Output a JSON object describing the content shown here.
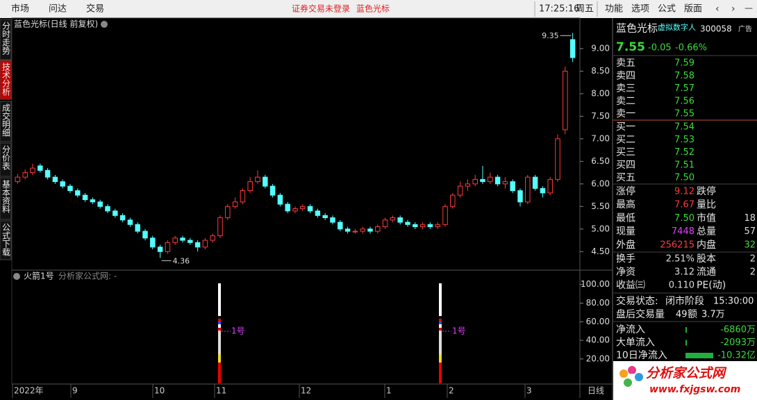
{
  "top_bar": {
    "menu": [
      "市场",
      "问达",
      "交易"
    ],
    "status": "证券交易未登录",
    "stock": "蓝色光标",
    "time": "17:25:16",
    "weekday": "周五",
    "tools": [
      "功能",
      "选项",
      "公式",
      "版面"
    ]
  },
  "side_tabs": [
    "分时走势",
    "技术分析",
    "成交明细",
    "分价表",
    "基本资料",
    "公式下载"
  ],
  "chart_data": [
    {
      "type": "candlestick",
      "title": "蓝色光标(日线 前复权)",
      "candles": [
        [
          6.05,
          6.15,
          6.22,
          6.0
        ],
        [
          6.15,
          6.25,
          6.32,
          6.1
        ],
        [
          6.25,
          6.35,
          6.45,
          6.2
        ],
        [
          6.4,
          6.3,
          6.45,
          6.25
        ],
        [
          6.3,
          6.15,
          6.35,
          6.1
        ],
        [
          6.15,
          6.05,
          6.2,
          6.0
        ],
        [
          6.05,
          5.95,
          6.1,
          5.9
        ],
        [
          5.95,
          5.85,
          6.0,
          5.8
        ],
        [
          5.85,
          5.75,
          5.9,
          5.7
        ],
        [
          5.75,
          5.65,
          5.8,
          5.6
        ],
        [
          5.65,
          5.6,
          5.7,
          5.55
        ],
        [
          5.6,
          5.5,
          5.65,
          5.45
        ],
        [
          5.5,
          5.4,
          5.55,
          5.35
        ],
        [
          5.4,
          5.3,
          5.45,
          5.25
        ],
        [
          5.3,
          5.2,
          5.35,
          5.15
        ],
        [
          5.2,
          5.1,
          5.25,
          5.05
        ],
        [
          5.1,
          4.95,
          5.15,
          4.9
        ],
        [
          4.95,
          4.8,
          5.0,
          4.75
        ],
        [
          4.8,
          4.6,
          4.85,
          4.55
        ],
        [
          4.6,
          4.5,
          4.65,
          4.36
        ],
        [
          4.5,
          4.7,
          4.75,
          4.45
        ],
        [
          4.7,
          4.8,
          4.85,
          4.65
        ],
        [
          4.8,
          4.75,
          4.85,
          4.7
        ],
        [
          4.75,
          4.7,
          4.8,
          4.65
        ],
        [
          4.7,
          4.6,
          4.75,
          4.5
        ],
        [
          4.6,
          4.75,
          4.8,
          4.55
        ],
        [
          4.75,
          4.85,
          4.9,
          4.7
        ],
        [
          4.85,
          5.25,
          5.3,
          4.8
        ],
        [
          5.25,
          5.5,
          5.55,
          5.2
        ],
        [
          5.5,
          5.6,
          5.7,
          5.45
        ],
        [
          5.6,
          5.85,
          5.9,
          5.55
        ],
        [
          5.85,
          6.05,
          6.15,
          5.8
        ],
        [
          6.05,
          6.15,
          6.3,
          6.0
        ],
        [
          6.15,
          5.95,
          6.2,
          5.9
        ],
        [
          5.95,
          5.75,
          6.0,
          5.7
        ],
        [
          5.75,
          5.55,
          5.8,
          5.5
        ],
        [
          5.55,
          5.4,
          5.6,
          5.35
        ],
        [
          5.4,
          5.45,
          5.5,
          5.35
        ],
        [
          5.45,
          5.5,
          5.55,
          5.4
        ],
        [
          5.5,
          5.4,
          5.55,
          5.35
        ],
        [
          5.4,
          5.3,
          5.45,
          5.25
        ],
        [
          5.3,
          5.25,
          5.35,
          5.2
        ],
        [
          5.25,
          5.15,
          5.3,
          5.1
        ],
        [
          5.15,
          5.0,
          5.2,
          4.95
        ],
        [
          5.0,
          4.95,
          5.05,
          4.9
        ],
        [
          4.95,
          4.95,
          5.0,
          4.9
        ],
        [
          4.95,
          5.0,
          5.05,
          4.9
        ],
        [
          5.0,
          4.95,
          5.05,
          4.9
        ],
        [
          4.95,
          5.05,
          5.1,
          4.9
        ],
        [
          5.05,
          5.2,
          5.25,
          5.0
        ],
        [
          5.2,
          5.25,
          5.3,
          5.15
        ],
        [
          5.25,
          5.15,
          5.3,
          5.1
        ],
        [
          5.15,
          5.1,
          5.2,
          5.05
        ],
        [
          5.1,
          5.05,
          5.15,
          5.0
        ],
        [
          5.05,
          5.1,
          5.15,
          5.0
        ],
        [
          5.1,
          5.05,
          5.15,
          5.0
        ],
        [
          5.05,
          5.1,
          5.15,
          5.0
        ],
        [
          5.1,
          5.5,
          5.55,
          5.05
        ],
        [
          5.5,
          5.75,
          5.8,
          5.45
        ],
        [
          5.75,
          5.95,
          6.05,
          5.7
        ],
        [
          5.95,
          6.0,
          6.1,
          5.85
        ],
        [
          6.0,
          6.1,
          6.2,
          5.95
        ],
        [
          6.1,
          6.05,
          6.4,
          6.0
        ],
        [
          6.05,
          6.15,
          6.25,
          6.0
        ],
        [
          6.15,
          6.0,
          6.2,
          5.95
        ],
        [
          6.0,
          6.05,
          6.15,
          5.9
        ],
        [
          6.05,
          5.85,
          6.1,
          5.8
        ],
        [
          5.85,
          5.6,
          5.9,
          5.5
        ],
        [
          5.6,
          6.15,
          6.2,
          5.55
        ],
        [
          6.15,
          5.9,
          6.2,
          5.85
        ],
        [
          5.9,
          5.8,
          5.95,
          5.7
        ],
        [
          5.8,
          6.1,
          6.15,
          5.75
        ],
        [
          6.1,
          7.0,
          7.1,
          6.05
        ],
        [
          7.2,
          8.5,
          8.6,
          7.1
        ],
        [
          9.2,
          8.8,
          9.35,
          8.7
        ]
      ],
      "ylim": [
        4.15,
        9.6
      ],
      "yticks": [
        {
          "value": 9,
          "label": "9.00"
        },
        {
          "value": 8.5,
          "label": "8.50"
        },
        {
          "value": 8,
          "label": "8.00"
        },
        {
          "value": 7.5,
          "label": "7.50"
        },
        {
          "value": 7,
          "label": "7.00"
        },
        {
          "value": 6.5,
          "label": "6.50"
        },
        {
          "value": 6,
          "label": "6.00"
        },
        {
          "value": 5.5,
          "label": "5.50"
        },
        {
          "value": 5,
          "label": "5.00"
        },
        {
          "value": 4.5,
          "label": "4.50"
        }
      ],
      "high_label": "9.35",
      "low_label": "4.36",
      "x_labels": [
        "2022年",
        "9",
        "10",
        "11",
        "12",
        "1",
        "2",
        "3"
      ],
      "period": "日线",
      "up_color": "#ff3c3c",
      "down_color": "#54ffff"
    },
    {
      "type": "indicator",
      "title": "火箭1号",
      "subtitle": "分析家公式网: -",
      "signal_label": "1号",
      "ylim": [
        -7,
        111
      ],
      "yticks": [
        {
          "value": 100,
          "label": "100.00"
        },
        {
          "value": 80,
          "label": "80.00"
        },
        {
          "value": 60,
          "label": "60.00"
        },
        {
          "value": 40,
          "label": "40.00"
        },
        {
          "value": 20,
          "label": "20.00"
        }
      ]
    }
  ],
  "quote": {
    "name": "蓝色光标",
    "tag": "虚拟数字人",
    "code": "300058",
    "ad": "广告",
    "price": "7.55",
    "change": "-0.05",
    "change_pct": "-0.66%",
    "asks": [
      [
        "卖五",
        "7.59"
      ],
      [
        "卖四",
        "7.58"
      ],
      [
        "卖三",
        "7.57"
      ],
      [
        "卖二",
        "7.56"
      ],
      [
        "卖一",
        "7.55"
      ]
    ],
    "bids": [
      [
        "买一",
        "7.54"
      ],
      [
        "买二",
        "7.53"
      ],
      [
        "买三",
        "7.52"
      ],
      [
        "买四",
        "7.51"
      ],
      [
        "买五",
        "7.50"
      ]
    ],
    "stats": [
      [
        "涨停",
        "9.12",
        "跌停"
      ],
      [
        "最高",
        "7.67",
        "量比"
      ],
      [
        "最低",
        "7.50",
        "市值",
        "18"
      ],
      [
        "现量",
        "7448",
        "总量",
        "57"
      ],
      [
        "外盘",
        "256215",
        "内盘",
        "32"
      ]
    ],
    "stats2": [
      [
        "换手",
        "2.51%",
        "股本",
        "2"
      ],
      [
        "净资",
        "3.12",
        "流通",
        "2"
      ],
      [
        "收益㈢",
        "0.110",
        "PE(动)"
      ]
    ],
    "trading": {
      "status_label": "交易状态:",
      "status": "闭市阶段",
      "time": "15:30:00",
      "after_label": "盘后交易量",
      "after_volume": "49",
      "amount_label": "额",
      "amount": "3.7万"
    },
    "flows": [
      [
        "净流入",
        "-6860万"
      ],
      [
        "大单流入",
        "-2093万"
      ],
      [
        "10日净流入",
        "-10.32亿"
      ]
    ]
  },
  "logo": {
    "name": "分析家公式网",
    "url": "www.fxjgsw.com"
  }
}
